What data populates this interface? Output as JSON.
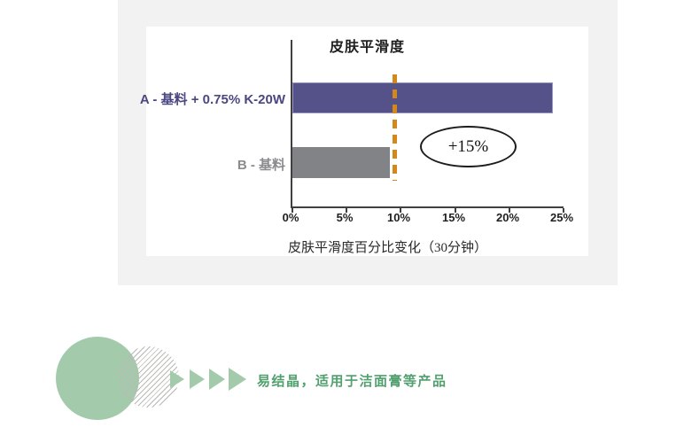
{
  "chart_data": {
    "type": "bar",
    "orientation": "horizontal",
    "title": "皮肤平滑度",
    "categories": [
      "A - 基料 + 0.75% K-20W",
      "B - 基料"
    ],
    "values": [
      24,
      9
    ],
    "value_unit": "%",
    "xlabel": "皮肤平滑度百分比变化（30分钟）",
    "xlim": [
      0,
      25
    ],
    "x_ticks": [
      "0%",
      "5%",
      "10%",
      "15%",
      "20%",
      "25%"
    ],
    "bar_colors": [
      "#555189",
      "#828387"
    ],
    "category_label_colors": [
      "#4a4781",
      "#8b8b8e"
    ],
    "reference_line": {
      "value": 9.4,
      "style": "dashed",
      "color": "#d4881c"
    },
    "annotation": {
      "text": "+15%",
      "shape": "ellipse"
    },
    "grid": false,
    "legend": false
  },
  "bottom_banner": {
    "text": "易结晶，适用于洁面膏等产品",
    "text_color": "#53a06f",
    "accent_color": "#a3cbab",
    "arrow_icon_count": 4
  }
}
